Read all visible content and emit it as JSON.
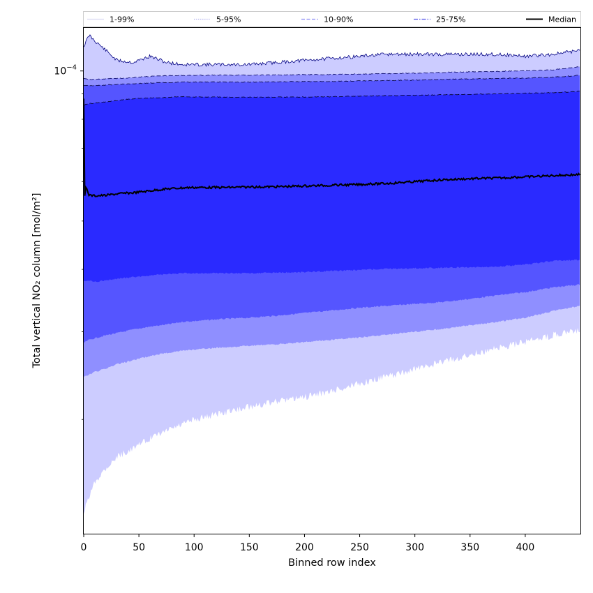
{
  "chart_data": {
    "type": "area",
    "xlabel": "Binned row index",
    "ylabel": "Total vertical NO₂ column [mol/m²]",
    "x_ticks": [
      0,
      50,
      100,
      150,
      200,
      250,
      300,
      350,
      400
    ],
    "y_tick_labels": [
      {
        "base": "10",
        "exp": "−4",
        "value": 0.0001
      }
    ],
    "y_scale": "log",
    "xlim": [
      0,
      450
    ],
    "ylim": [
      1.18e-05,
      0.000122
    ],
    "grid": false,
    "legend_placement": "top (above plot, single row)",
    "legend": [
      {
        "name": "1-99%",
        "color": "#d9d9f2",
        "style": "solid"
      },
      {
        "name": "5-95%",
        "color": "#b4b4ee",
        "style": "dotted"
      },
      {
        "name": "10-90%",
        "color": "#8a8af5",
        "style": "dashed"
      },
      {
        "name": "25-75%",
        "color": "#4f4fe8",
        "style": "dashdot"
      },
      {
        "name": "Median",
        "color": "#000000",
        "style": "solid"
      }
    ],
    "fill_colors": {
      "1-99%": "#ccccff",
      "5-95%": "#8f8fff",
      "10-90%": "#5555ff",
      "25-75%": "#2a2aff"
    },
    "x": [
      0,
      5,
      10,
      20,
      30,
      45,
      60,
      75,
      90,
      100,
      125,
      150,
      175,
      200,
      225,
      250,
      275,
      300,
      325,
      350,
      375,
      400,
      425,
      450
    ],
    "series": [
      {
        "name": "1-99% upper",
        "values": [
          0.000112,
          0.000118,
          0.000115,
          0.00011,
          0.000105,
          0.000104,
          0.000107,
          0.000104,
          0.000103,
          0.000103,
          0.000103,
          0.000103,
          0.000104,
          0.000105,
          0.000106,
          0.000107,
          0.000108,
          0.000108,
          0.000108,
          0.000108,
          0.000108,
          0.000107,
          0.000108,
          0.00011
        ]
      },
      {
        "name": "5-95% upper",
        "values": [
          9.65e-05,
          9.62e-05,
          9.62e-05,
          9.65e-05,
          9.66e-05,
          9.7e-05,
          9.75e-05,
          9.78e-05,
          9.8e-05,
          9.8e-05,
          9.81e-05,
          9.81e-05,
          9.82e-05,
          9.83e-05,
          9.84e-05,
          9.86e-05,
          9.88e-05,
          9.9e-05,
          9.93e-05,
          9.96e-05,
          9.98e-05,
          0.0001001,
          0.0001005,
          0.000102
        ]
      },
      {
        "name": "10-90% upper",
        "values": [
          9.35e-05,
          9.35e-05,
          9.35e-05,
          9.37e-05,
          9.4e-05,
          9.43e-05,
          9.46e-05,
          9.48e-05,
          9.5e-05,
          9.5e-05,
          9.5e-05,
          9.5e-05,
          9.51e-05,
          9.52e-05,
          9.53e-05,
          9.55e-05,
          9.57e-05,
          9.59e-05,
          9.62e-05,
          9.64e-05,
          9.66e-05,
          9.68e-05,
          9.72e-05,
          9.8e-05
        ]
      },
      {
        "name": "25-75% upper",
        "values": [
          8.55e-05,
          8.6e-05,
          8.62e-05,
          8.67e-05,
          8.72e-05,
          8.8e-05,
          8.83e-05,
          8.85e-05,
          8.88e-05,
          8.87e-05,
          8.86e-05,
          8.86e-05,
          8.86e-05,
          8.87e-05,
          8.88e-05,
          8.9e-05,
          8.92e-05,
          8.94e-05,
          8.96e-05,
          8.98e-05,
          9e-05,
          9.02e-05,
          9.05e-05,
          9.1e-05
        ]
      },
      {
        "name": "Median",
        "values": [
          6e-05,
          5.63e-05,
          5.62e-05,
          5.63e-05,
          5.67e-05,
          5.7e-05,
          5.75e-05,
          5.8e-05,
          5.83e-05,
          5.84e-05,
          5.84e-05,
          5.85e-05,
          5.86e-05,
          5.88e-05,
          5.9e-05,
          5.92e-05,
          5.95e-05,
          6e-05,
          6.05e-05,
          6.08e-05,
          6.1e-05,
          6.13e-05,
          6.17e-05,
          6.2e-05
        ]
      },
      {
        "name": "25-75% lower",
        "values": [
          3.8e-05,
          3.8e-05,
          3.78e-05,
          3.8e-05,
          3.83e-05,
          3.86e-05,
          3.89e-05,
          3.91e-05,
          3.93e-05,
          3.93e-05,
          3.93e-05,
          3.93e-05,
          3.94e-05,
          3.95e-05,
          3.97e-05,
          3.99e-05,
          4.01e-05,
          4.02e-05,
          4.03e-05,
          4.04e-05,
          4.05e-05,
          4.09e-05,
          4.16e-05,
          4.18e-05
        ]
      },
      {
        "name": "10-90% lower",
        "values": [
          2.85e-05,
          2.89e-05,
          2.91e-05,
          2.95e-05,
          2.98e-05,
          3.03e-05,
          3.07e-05,
          3.1e-05,
          3.14e-05,
          3.15e-05,
          3.18e-05,
          3.2e-05,
          3.23e-05,
          3.27e-05,
          3.31e-05,
          3.35e-05,
          3.38e-05,
          3.41e-05,
          3.44e-05,
          3.49e-05,
          3.55e-05,
          3.6e-05,
          3.68e-05,
          3.73e-05
        ]
      },
      {
        "name": "5-95% lower",
        "values": [
          2.43e-05,
          2.46e-05,
          2.49e-05,
          2.53e-05,
          2.58e-05,
          2.63e-05,
          2.68e-05,
          2.72e-05,
          2.75e-05,
          2.76e-05,
          2.79e-05,
          2.81e-05,
          2.83e-05,
          2.86e-05,
          2.89e-05,
          2.92e-05,
          2.96e-05,
          3e-05,
          3.04e-05,
          3.09e-05,
          3.14e-05,
          3.2e-05,
          3.3e-05,
          3.38e-05
        ]
      },
      {
        "name": "1-99% lower",
        "values": [
          1.3e-05,
          1.4e-05,
          1.5e-05,
          1.6e-05,
          1.68e-05,
          1.75e-05,
          1.83e-05,
          1.9e-05,
          1.96e-05,
          2e-05,
          2.06e-05,
          2.12e-05,
          2.17e-05,
          2.22e-05,
          2.28e-05,
          2.36e-05,
          2.44e-05,
          2.52e-05,
          2.61e-05,
          2.7e-05,
          2.78e-05,
          2.86e-05,
          2.95e-05,
          3.03e-05
        ]
      }
    ]
  }
}
